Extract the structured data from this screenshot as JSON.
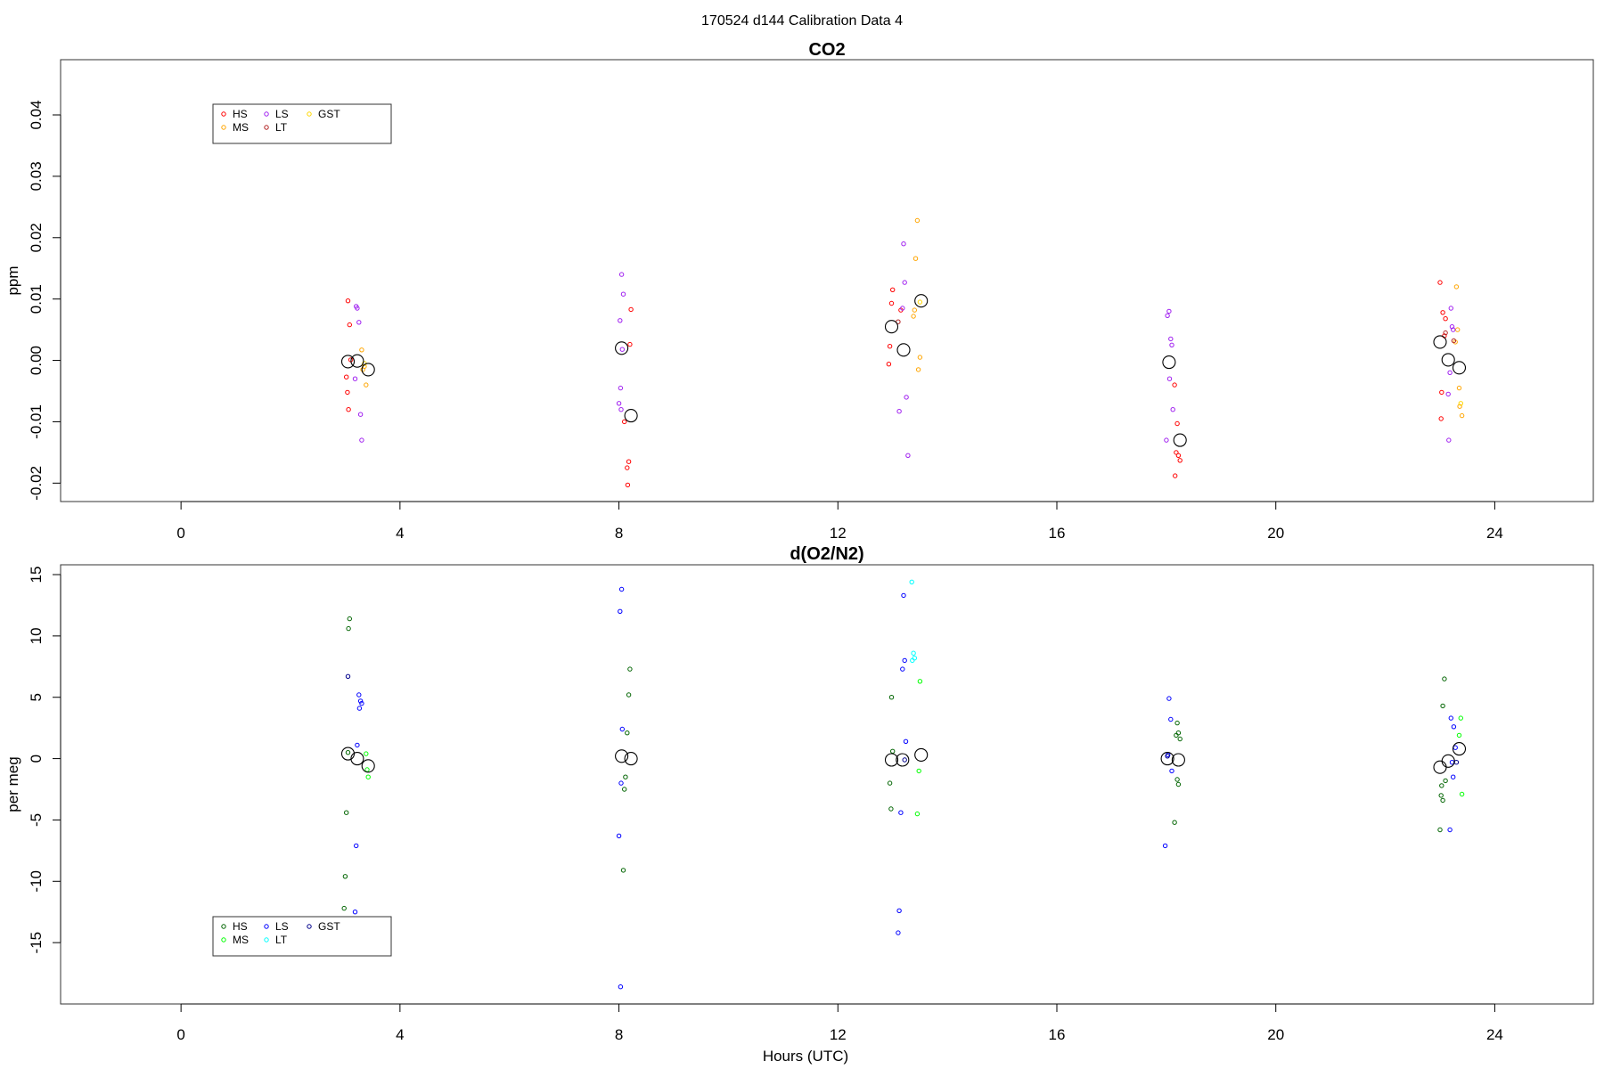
{
  "figure": {
    "title": "170524   d144   Calibration Data 4",
    "xlabel": "Hours (UTC)"
  },
  "chart_data": [
    {
      "type": "scatter",
      "title": "CO2",
      "xlabel": "",
      "ylabel": "ppm",
      "xlim": [
        -2.2,
        25.8
      ],
      "ylim": [
        -0.023,
        0.049
      ],
      "x_ticks": [
        0,
        4,
        8,
        12,
        16,
        20,
        24
      ],
      "y_ticks": [
        -0.02,
        -0.01,
        0.0,
        0.01,
        0.02,
        0.03,
        0.04
      ],
      "y_tick_labels": [
        "-0.02",
        "-0.01",
        "0.00",
        "0.01",
        "0.02",
        "0.03",
        "0.04"
      ],
      "grid": false,
      "legend_position": "top-left",
      "legend_columns": [
        [
          "HS",
          "MS"
        ],
        [
          "LS",
          "LT"
        ],
        [
          "GST"
        ]
      ],
      "series": [
        {
          "name": "HS",
          "color": "#ff0000",
          "points": [
            [
              3.05,
              0.0097
            ],
            [
              3.08,
              0.0058
            ],
            [
              3.02,
              -0.0027
            ],
            [
              3.04,
              -0.0052
            ],
            [
              3.06,
              -0.008
            ],
            [
              3.1,
              0.0001
            ],
            [
              8.1,
              -0.01
            ],
            [
              8.15,
              -0.0175
            ],
            [
              8.18,
              -0.0165
            ],
            [
              8.16,
              -0.0203
            ],
            [
              8.22,
              0.0083
            ],
            [
              8.2,
              0.0026
            ],
            [
              13.0,
              0.0115
            ],
            [
              12.98,
              0.0093
            ],
            [
              12.95,
              0.0023
            ],
            [
              12.93,
              -0.0006
            ],
            [
              13.15,
              0.0082
            ],
            [
              18.2,
              -0.0103
            ],
            [
              18.22,
              -0.0155
            ],
            [
              18.18,
              -0.015
            ],
            [
              18.25,
              -0.0163
            ],
            [
              18.16,
              -0.0188
            ],
            [
              18.15,
              -0.004
            ],
            [
              23.0,
              0.0127
            ],
            [
              23.05,
              0.0078
            ],
            [
              23.1,
              0.0068
            ],
            [
              23.08,
              0.004
            ],
            [
              23.03,
              -0.0052
            ],
            [
              23.02,
              -0.0095
            ]
          ]
        },
        {
          "name": "MS",
          "color": "#ffa500",
          "points": [
            [
              3.3,
              0.0017
            ],
            [
              3.35,
              -0.001
            ],
            [
              3.38,
              -0.004
            ],
            [
              3.32,
              -0.0015
            ],
            [
              13.45,
              0.0228
            ],
            [
              13.42,
              0.0166
            ],
            [
              13.4,
              0.0082
            ],
            [
              13.38,
              0.0072
            ],
            [
              13.5,
              0.0005
            ],
            [
              13.47,
              -0.0015
            ],
            [
              23.3,
              0.012
            ],
            [
              23.32,
              0.005
            ],
            [
              23.28,
              0.003
            ],
            [
              23.35,
              -0.0045
            ],
            [
              23.36,
              -0.0075
            ],
            [
              23.4,
              -0.009
            ]
          ]
        },
        {
          "name": "LS",
          "color": "#a020f0",
          "points": [
            [
              3.2,
              0.0088
            ],
            [
              3.22,
              0.0085
            ],
            [
              3.25,
              0.0062
            ],
            [
              3.18,
              -0.003
            ],
            [
              3.28,
              -0.0088
            ],
            [
              3.3,
              -0.013
            ],
            [
              8.05,
              0.014
            ],
            [
              8.08,
              0.0108
            ],
            [
              8.02,
              0.0065
            ],
            [
              8.06,
              0.0018
            ],
            [
              8.03,
              -0.0045
            ],
            [
              8.0,
              -0.007
            ],
            [
              8.04,
              -0.008
            ],
            [
              13.2,
              0.019
            ],
            [
              13.22,
              0.0127
            ],
            [
              13.18,
              0.0085
            ],
            [
              13.25,
              -0.006
            ],
            [
              13.12,
              -0.0083
            ],
            [
              13.28,
              -0.0155
            ],
            [
              18.05,
              0.008
            ],
            [
              18.02,
              0.0073
            ],
            [
              18.08,
              0.0035
            ],
            [
              18.1,
              0.0025
            ],
            [
              18.06,
              -0.003
            ],
            [
              18.12,
              -0.008
            ],
            [
              18.0,
              -0.013
            ],
            [
              23.2,
              0.0085
            ],
            [
              23.22,
              0.0055
            ],
            [
              23.24,
              0.005
            ],
            [
              23.18,
              -0.002
            ],
            [
              23.15,
              -0.0055
            ],
            [
              23.16,
              -0.013
            ]
          ]
        },
        {
          "name": "LT",
          "color": "#b22222",
          "points": [
            [
              23.1,
              0.0045
            ],
            [
              23.25,
              0.0032
            ],
            [
              13.1,
              0.0063
            ]
          ]
        },
        {
          "name": "GST",
          "color": "#ffd700",
          "points": [
            [
              3.35,
              -0.0005
            ],
            [
              13.5,
              0.0095
            ],
            [
              23.38,
              -0.007
            ]
          ]
        },
        {
          "name": "",
          "color": "#000000",
          "marker": "large-circle",
          "points": [
            [
              3.05,
              -0.0002
            ],
            [
              3.22,
              -0.0001
            ],
            [
              3.42,
              -0.0015
            ],
            [
              8.05,
              0.002
            ],
            [
              8.22,
              -0.009
            ],
            [
              12.98,
              0.0055
            ],
            [
              13.2,
              0.0017
            ],
            [
              13.52,
              0.0097
            ],
            [
              18.05,
              -0.0003
            ],
            [
              18.25,
              -0.013
            ],
            [
              23.0,
              0.003
            ],
            [
              23.15,
              0.0001
            ],
            [
              23.35,
              -0.0012
            ]
          ]
        }
      ]
    },
    {
      "type": "scatter",
      "title": "d(O2/N2)",
      "xlabel": "Hours (UTC)",
      "ylabel": "per meg",
      "xlim": [
        -2.2,
        25.8
      ],
      "ylim": [
        -20,
        15.8
      ],
      "x_ticks": [
        0,
        4,
        8,
        12,
        16,
        20,
        24
      ],
      "y_ticks": [
        -15,
        -10,
        -5,
        0,
        5,
        10,
        15
      ],
      "y_tick_labels": [
        "-15",
        "-10",
        "-5",
        "0",
        "5",
        "10",
        "15"
      ],
      "grid": false,
      "legend_position": "bottom-left",
      "legend_columns": [
        [
          "HS",
          "MS"
        ],
        [
          "LS",
          "LT"
        ],
        [
          "GST"
        ]
      ],
      "series": [
        {
          "name": "HS",
          "color": "#006400",
          "points": [
            [
              3.08,
              11.4
            ],
            [
              3.06,
              10.6
            ],
            [
              3.05,
              0.5
            ],
            [
              3.02,
              -4.4
            ],
            [
              3.0,
              -9.6
            ],
            [
              2.98,
              -12.2
            ],
            [
              8.2,
              7.3
            ],
            [
              8.18,
              5.2
            ],
            [
              8.15,
              2.1
            ],
            [
              8.12,
              -1.5
            ],
            [
              8.1,
              -2.5
            ],
            [
              8.08,
              -9.1
            ],
            [
              12.98,
              5.0
            ],
            [
              13.0,
              0.6
            ],
            [
              12.95,
              -2.0
            ],
            [
              12.97,
              -4.1
            ],
            [
              18.2,
              2.9
            ],
            [
              18.18,
              1.9
            ],
            [
              18.22,
              2.1
            ],
            [
              18.25,
              1.6
            ],
            [
              18.2,
              -1.7
            ],
            [
              18.22,
              -2.1
            ],
            [
              18.15,
              -5.2
            ],
            [
              23.08,
              6.5
            ],
            [
              23.05,
              4.3
            ],
            [
              23.1,
              -1.8
            ],
            [
              23.03,
              -2.2
            ],
            [
              23.02,
              -3.0
            ],
            [
              23.05,
              -3.4
            ],
            [
              23.0,
              -5.8
            ]
          ]
        },
        {
          "name": "MS",
          "color": "#00ff00",
          "points": [
            [
              3.38,
              0.4
            ],
            [
              3.4,
              -0.9
            ],
            [
              3.42,
              -1.5
            ],
            [
              13.5,
              6.3
            ],
            [
              13.48,
              -1.0
            ],
            [
              13.45,
              -4.5
            ],
            [
              23.38,
              3.3
            ],
            [
              23.35,
              1.9
            ],
            [
              23.4,
              -2.9
            ]
          ]
        },
        {
          "name": "LS",
          "color": "#0000ff",
          "points": [
            [
              3.25,
              5.2
            ],
            [
              3.28,
              4.7
            ],
            [
              3.3,
              4.5
            ],
            [
              3.26,
              4.1
            ],
            [
              3.22,
              1.1
            ],
            [
              3.2,
              -7.1
            ],
            [
              3.18,
              -12.5
            ],
            [
              8.05,
              13.8
            ],
            [
              8.02,
              12.0
            ],
            [
              8.06,
              2.4
            ],
            [
              8.04,
              -2.0
            ],
            [
              8.0,
              -6.3
            ],
            [
              8.03,
              -18.6
            ],
            [
              13.2,
              13.3
            ],
            [
              13.22,
              8.0
            ],
            [
              13.18,
              7.3
            ],
            [
              13.24,
              1.4
            ],
            [
              13.15,
              -4.4
            ],
            [
              13.12,
              -12.4
            ],
            [
              13.1,
              -14.2
            ],
            [
              18.05,
              4.9
            ],
            [
              18.08,
              3.2
            ],
            [
              18.03,
              0.3
            ],
            [
              18.1,
              -1.0
            ],
            [
              17.98,
              -7.1
            ],
            [
              23.2,
              3.3
            ],
            [
              23.25,
              2.6
            ],
            [
              23.28,
              0.9
            ],
            [
              23.22,
              -0.3
            ],
            [
              23.24,
              -1.5
            ],
            [
              23.18,
              -5.8
            ]
          ]
        },
        {
          "name": "LT",
          "color": "#00ffff",
          "points": [
            [
              13.35,
              14.4
            ],
            [
              13.38,
              8.6
            ],
            [
              13.4,
              8.2
            ],
            [
              13.36,
              8.0
            ]
          ]
        },
        {
          "name": "GST",
          "color": "#00008b",
          "points": [
            [
              3.05,
              6.7
            ],
            [
              18.02,
              0.2
            ],
            [
              23.3,
              -0.3
            ],
            [
              13.22,
              -0.1
            ]
          ]
        },
        {
          "name": "",
          "color": "#000000",
          "marker": "large-circle",
          "points": [
            [
              3.05,
              0.4
            ],
            [
              3.22,
              0.0
            ],
            [
              3.42,
              -0.6
            ],
            [
              8.05,
              0.2
            ],
            [
              8.22,
              0.0
            ],
            [
              12.98,
              -0.1
            ],
            [
              13.18,
              -0.1
            ],
            [
              13.52,
              0.3
            ],
            [
              18.02,
              0.0
            ],
            [
              18.22,
              -0.1
            ],
            [
              23.0,
              -0.7
            ],
            [
              23.15,
              -0.2
            ],
            [
              23.35,
              0.8
            ]
          ]
        }
      ]
    }
  ]
}
